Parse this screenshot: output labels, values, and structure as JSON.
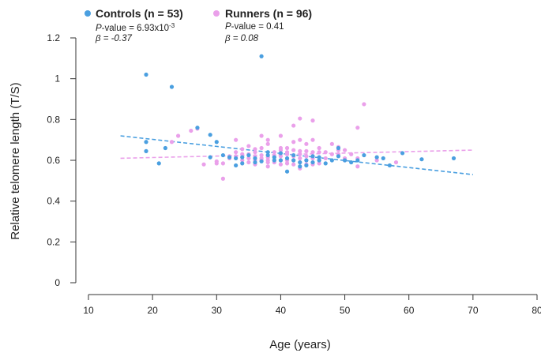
{
  "chart_data": {
    "type": "scatter",
    "xlabel": "Age (years)",
    "ylabel": "Relative telomere length (T/S)",
    "xlim": [
      10,
      80
    ],
    "ylim": [
      0,
      1.2
    ],
    "xticks": [
      10,
      20,
      30,
      40,
      50,
      60,
      70,
      80
    ],
    "yticks": [
      0,
      0.2,
      0.4,
      0.6,
      0.8,
      1,
      1.2
    ],
    "xtick_labels": [
      "10",
      "20",
      "30",
      "40",
      "50",
      "60",
      "70",
      "80"
    ],
    "ytick_labels": [
      "0",
      "0.2",
      "0.4",
      "0.6",
      "0.8",
      "1",
      "1.2"
    ],
    "grid": false,
    "legend_position": "top-left",
    "series": [
      {
        "name": "Controls (n = 53)",
        "color": "#4a9fe0",
        "p_label": "P",
        "p_text": "-value = 6.93x10",
        "p_exp": "-3",
        "beta_text": "β = -0.37",
        "trend": [
          [
            15,
            0.72
          ],
          [
            70,
            0.53
          ]
        ],
        "points": [
          [
            19,
            1.02
          ],
          [
            19,
            0.69
          ],
          [
            19,
            0.645
          ],
          [
            21,
            0.585
          ],
          [
            22,
            0.66
          ],
          [
            23,
            0.96
          ],
          [
            27,
            0.76
          ],
          [
            29,
            0.725
          ],
          [
            29,
            0.615
          ],
          [
            30,
            0.69
          ],
          [
            31,
            0.625
          ],
          [
            33,
            0.575
          ],
          [
            33,
            0.61
          ],
          [
            34,
            0.615
          ],
          [
            35,
            0.625
          ],
          [
            36,
            0.61
          ],
          [
            37,
            1.11
          ],
          [
            37,
            0.595
          ],
          [
            38,
            0.64
          ],
          [
            38,
            0.625
          ],
          [
            39,
            0.6
          ],
          [
            39,
            0.615
          ],
          [
            40,
            0.6
          ],
          [
            40,
            0.635
          ],
          [
            41,
            0.545
          ],
          [
            41,
            0.61
          ],
          [
            42,
            0.6
          ],
          [
            42,
            0.625
          ],
          [
            43,
            0.59
          ],
          [
            43,
            0.57
          ],
          [
            44,
            0.6
          ],
          [
            44,
            0.575
          ],
          [
            45,
            0.62
          ],
          [
            45,
            0.59
          ],
          [
            46,
            0.6
          ],
          [
            47,
            0.585
          ],
          [
            48,
            0.6
          ],
          [
            49,
            0.66
          ],
          [
            49,
            0.62
          ],
          [
            50,
            0.6
          ],
          [
            51,
            0.59
          ],
          [
            52,
            0.6
          ],
          [
            53,
            0.625
          ],
          [
            55,
            0.615
          ],
          [
            56,
            0.61
          ],
          [
            57,
            0.575
          ],
          [
            59,
            0.635
          ],
          [
            62,
            0.605
          ],
          [
            67,
            0.61
          ],
          [
            36,
            0.59
          ],
          [
            34,
            0.585
          ],
          [
            46,
            0.615
          ],
          [
            32,
            0.615
          ]
        ]
      },
      {
        "name": "Runners (n = 96)",
        "color": "#eaa0ea",
        "p_label": "P",
        "p_text": "-value = 0.41",
        "p_exp": "",
        "beta_text": "β = 0.08",
        "trend": [
          [
            15,
            0.61
          ],
          [
            70,
            0.65
          ]
        ],
        "points": [
          [
            23,
            0.69
          ],
          [
            24,
            0.72
          ],
          [
            26,
            0.745
          ],
          [
            27,
            0.755
          ],
          [
            28,
            0.58
          ],
          [
            30,
            0.595
          ],
          [
            30,
            0.585
          ],
          [
            31,
            0.51
          ],
          [
            31,
            0.585
          ],
          [
            32,
            0.62
          ],
          [
            32,
            0.61
          ],
          [
            33,
            0.7
          ],
          [
            33,
            0.64
          ],
          [
            33,
            0.62
          ],
          [
            34,
            0.6
          ],
          [
            34,
            0.63
          ],
          [
            34,
            0.655
          ],
          [
            35,
            0.61
          ],
          [
            35,
            0.59
          ],
          [
            35,
            0.63
          ],
          [
            35,
            0.67
          ],
          [
            36,
            0.62
          ],
          [
            36,
            0.6
          ],
          [
            36,
            0.58
          ],
          [
            36,
            0.64
          ],
          [
            37,
            0.72
          ],
          [
            37,
            0.66
          ],
          [
            37,
            0.625
          ],
          [
            37,
            0.61
          ],
          [
            37,
            0.6
          ],
          [
            38,
            0.68
          ],
          [
            38,
            0.7
          ],
          [
            38,
            0.6
          ],
          [
            38,
            0.59
          ],
          [
            38,
            0.57
          ],
          [
            38,
            0.615
          ],
          [
            39,
            0.59
          ],
          [
            39,
            0.62
          ],
          [
            39,
            0.64
          ],
          [
            39,
            0.6
          ],
          [
            40,
            0.72
          ],
          [
            40,
            0.66
          ],
          [
            40,
            0.65
          ],
          [
            40,
            0.62
          ],
          [
            40,
            0.6
          ],
          [
            40,
            0.58
          ],
          [
            41,
            0.63
          ],
          [
            41,
            0.6
          ],
          [
            41,
            0.585
          ],
          [
            41,
            0.66
          ],
          [
            41,
            0.64
          ],
          [
            42,
            0.77
          ],
          [
            42,
            0.69
          ],
          [
            42,
            0.65
          ],
          [
            42,
            0.62
          ],
          [
            42,
            0.6
          ],
          [
            42,
            0.58
          ],
          [
            43,
            0.805
          ],
          [
            43,
            0.7
          ],
          [
            43,
            0.645
          ],
          [
            43,
            0.63
          ],
          [
            43,
            0.61
          ],
          [
            43,
            0.59
          ],
          [
            43,
            0.56
          ],
          [
            44,
            0.68
          ],
          [
            44,
            0.62
          ],
          [
            44,
            0.6
          ],
          [
            44,
            0.58
          ],
          [
            45,
            0.795
          ],
          [
            45,
            0.7
          ],
          [
            45,
            0.64
          ],
          [
            45,
            0.61
          ],
          [
            45,
            0.58
          ],
          [
            46,
            0.66
          ],
          [
            46,
            0.64
          ],
          [
            46,
            0.6
          ],
          [
            46,
            0.585
          ],
          [
            47,
            0.64
          ],
          [
            47,
            0.61
          ],
          [
            48,
            0.68
          ],
          [
            48,
            0.63
          ],
          [
            49,
            0.665
          ],
          [
            49,
            0.65
          ],
          [
            49,
            0.63
          ],
          [
            50,
            0.65
          ],
          [
            50,
            0.61
          ],
          [
            50,
            0.6
          ],
          [
            51,
            0.63
          ],
          [
            52,
            0.76
          ],
          [
            52,
            0.61
          ],
          [
            52,
            0.57
          ],
          [
            53,
            0.875
          ],
          [
            55,
            0.6
          ],
          [
            58,
            0.59
          ],
          [
            44,
            0.645
          ],
          [
            36,
            0.655
          ]
        ]
      }
    ]
  }
}
